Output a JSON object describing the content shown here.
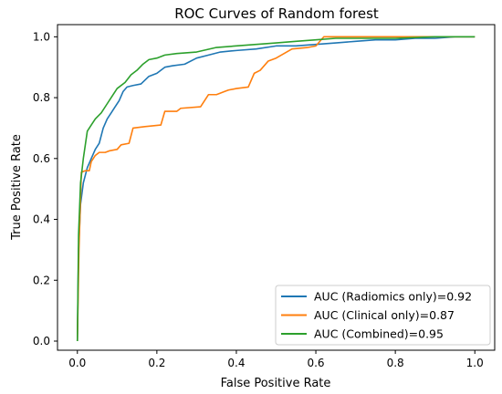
{
  "chart_data": {
    "type": "line",
    "title": "ROC Curves of Random forest",
    "xlabel": "False Positive Rate",
    "ylabel": "True Positive Rate",
    "xlim": [
      -0.05,
      1.05
    ],
    "ylim": [
      -0.03,
      1.04
    ],
    "xticks": [
      "0.0",
      "0.2",
      "0.4",
      "0.6",
      "0.8",
      "1.0"
    ],
    "yticks": [
      "0.0",
      "0.2",
      "0.4",
      "0.6",
      "0.8",
      "1.0"
    ],
    "grid": false,
    "legend_position": "lower-right",
    "series": [
      {
        "name": "AUC (Radiomics only)=0.92",
        "color": "#1f77b4",
        "points": [
          [
            0,
            0
          ],
          [
            0.003,
            0.3
          ],
          [
            0.008,
            0.45
          ],
          [
            0.015,
            0.52
          ],
          [
            0.025,
            0.57
          ],
          [
            0.035,
            0.6
          ],
          [
            0.045,
            0.63
          ],
          [
            0.055,
            0.65
          ],
          [
            0.065,
            0.7
          ],
          [
            0.075,
            0.73
          ],
          [
            0.085,
            0.75
          ],
          [
            0.095,
            0.77
          ],
          [
            0.105,
            0.79
          ],
          [
            0.115,
            0.82
          ],
          [
            0.125,
            0.835
          ],
          [
            0.14,
            0.84
          ],
          [
            0.16,
            0.845
          ],
          [
            0.18,
            0.87
          ],
          [
            0.2,
            0.88
          ],
          [
            0.22,
            0.9
          ],
          [
            0.24,
            0.905
          ],
          [
            0.27,
            0.91
          ],
          [
            0.3,
            0.93
          ],
          [
            0.33,
            0.94
          ],
          [
            0.36,
            0.95
          ],
          [
            0.4,
            0.955
          ],
          [
            0.45,
            0.96
          ],
          [
            0.5,
            0.97
          ],
          [
            0.55,
            0.97
          ],
          [
            0.6,
            0.975
          ],
          [
            0.65,
            0.98
          ],
          [
            0.7,
            0.985
          ],
          [
            0.75,
            0.99
          ],
          [
            0.8,
            0.99
          ],
          [
            0.85,
            0.995
          ],
          [
            0.9,
            0.995
          ],
          [
            0.95,
            1.0
          ],
          [
            1.0,
            1.0
          ]
        ]
      },
      {
        "name": "AUC (Clinical only)=0.87",
        "color": "#ff7f0e",
        "points": [
          [
            0,
            0
          ],
          [
            0.004,
            0.3
          ],
          [
            0.01,
            0.555
          ],
          [
            0.02,
            0.56
          ],
          [
            0.03,
            0.56
          ],
          [
            0.035,
            0.59
          ],
          [
            0.045,
            0.61
          ],
          [
            0.055,
            0.62
          ],
          [
            0.07,
            0.62
          ],
          [
            0.08,
            0.625
          ],
          [
            0.1,
            0.63
          ],
          [
            0.11,
            0.645
          ],
          [
            0.13,
            0.65
          ],
          [
            0.14,
            0.7
          ],
          [
            0.17,
            0.705
          ],
          [
            0.21,
            0.71
          ],
          [
            0.22,
            0.755
          ],
          [
            0.25,
            0.755
          ],
          [
            0.26,
            0.765
          ],
          [
            0.31,
            0.77
          ],
          [
            0.33,
            0.81
          ],
          [
            0.35,
            0.81
          ],
          [
            0.37,
            0.82
          ],
          [
            0.38,
            0.825
          ],
          [
            0.4,
            0.83
          ],
          [
            0.43,
            0.835
          ],
          [
            0.445,
            0.88
          ],
          [
            0.46,
            0.89
          ],
          [
            0.48,
            0.92
          ],
          [
            0.5,
            0.93
          ],
          [
            0.52,
            0.945
          ],
          [
            0.54,
            0.96
          ],
          [
            0.58,
            0.965
          ],
          [
            0.6,
            0.97
          ],
          [
            0.61,
            0.985
          ],
          [
            0.62,
            1.0
          ],
          [
            1.0,
            1.0
          ]
        ]
      },
      {
        "name": "AUC (Combined)=0.95",
        "color": "#2ca02c",
        "points": [
          [
            0,
            0
          ],
          [
            0.003,
            0.35
          ],
          [
            0.008,
            0.52
          ],
          [
            0.015,
            0.6
          ],
          [
            0.025,
            0.69
          ],
          [
            0.035,
            0.71
          ],
          [
            0.045,
            0.73
          ],
          [
            0.06,
            0.75
          ],
          [
            0.075,
            0.78
          ],
          [
            0.085,
            0.8
          ],
          [
            0.1,
            0.83
          ],
          [
            0.12,
            0.85
          ],
          [
            0.135,
            0.875
          ],
          [
            0.15,
            0.89
          ],
          [
            0.165,
            0.91
          ],
          [
            0.18,
            0.925
          ],
          [
            0.2,
            0.93
          ],
          [
            0.22,
            0.94
          ],
          [
            0.25,
            0.945
          ],
          [
            0.3,
            0.95
          ],
          [
            0.35,
            0.965
          ],
          [
            0.4,
            0.97
          ],
          [
            0.45,
            0.975
          ],
          [
            0.5,
            0.98
          ],
          [
            0.55,
            0.985
          ],
          [
            0.6,
            0.99
          ],
          [
            0.65,
            0.995
          ],
          [
            0.7,
            0.995
          ],
          [
            0.8,
            0.995
          ],
          [
            0.9,
            1.0
          ],
          [
            1.0,
            1.0
          ]
        ]
      }
    ]
  }
}
